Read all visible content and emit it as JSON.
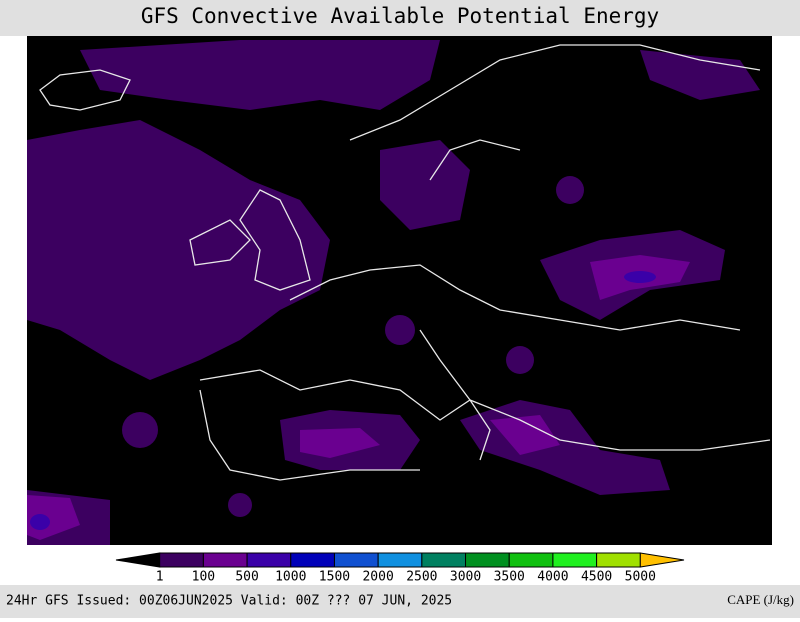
{
  "title": "GFS Convective Available Potential Energy",
  "legend": {
    "colors": [
      "#000000",
      "#3c0060",
      "#6a0090",
      "#3a00a8",
      "#0000b8",
      "#1050d0",
      "#1090e0",
      "#008060",
      "#009020",
      "#10c010",
      "#20f020",
      "#a0e000",
      "#ffc000"
    ],
    "ticks": [
      1,
      100,
      500,
      1000,
      1500,
      2000,
      2500,
      3000,
      3500,
      4000,
      4500,
      5000
    ]
  },
  "footer": {
    "left": "24Hr GFS Issued: 00Z06JUN2025 Valid: 00Z ??? 07 JUN, 2025",
    "right": "CAPE (J/kg)"
  }
}
